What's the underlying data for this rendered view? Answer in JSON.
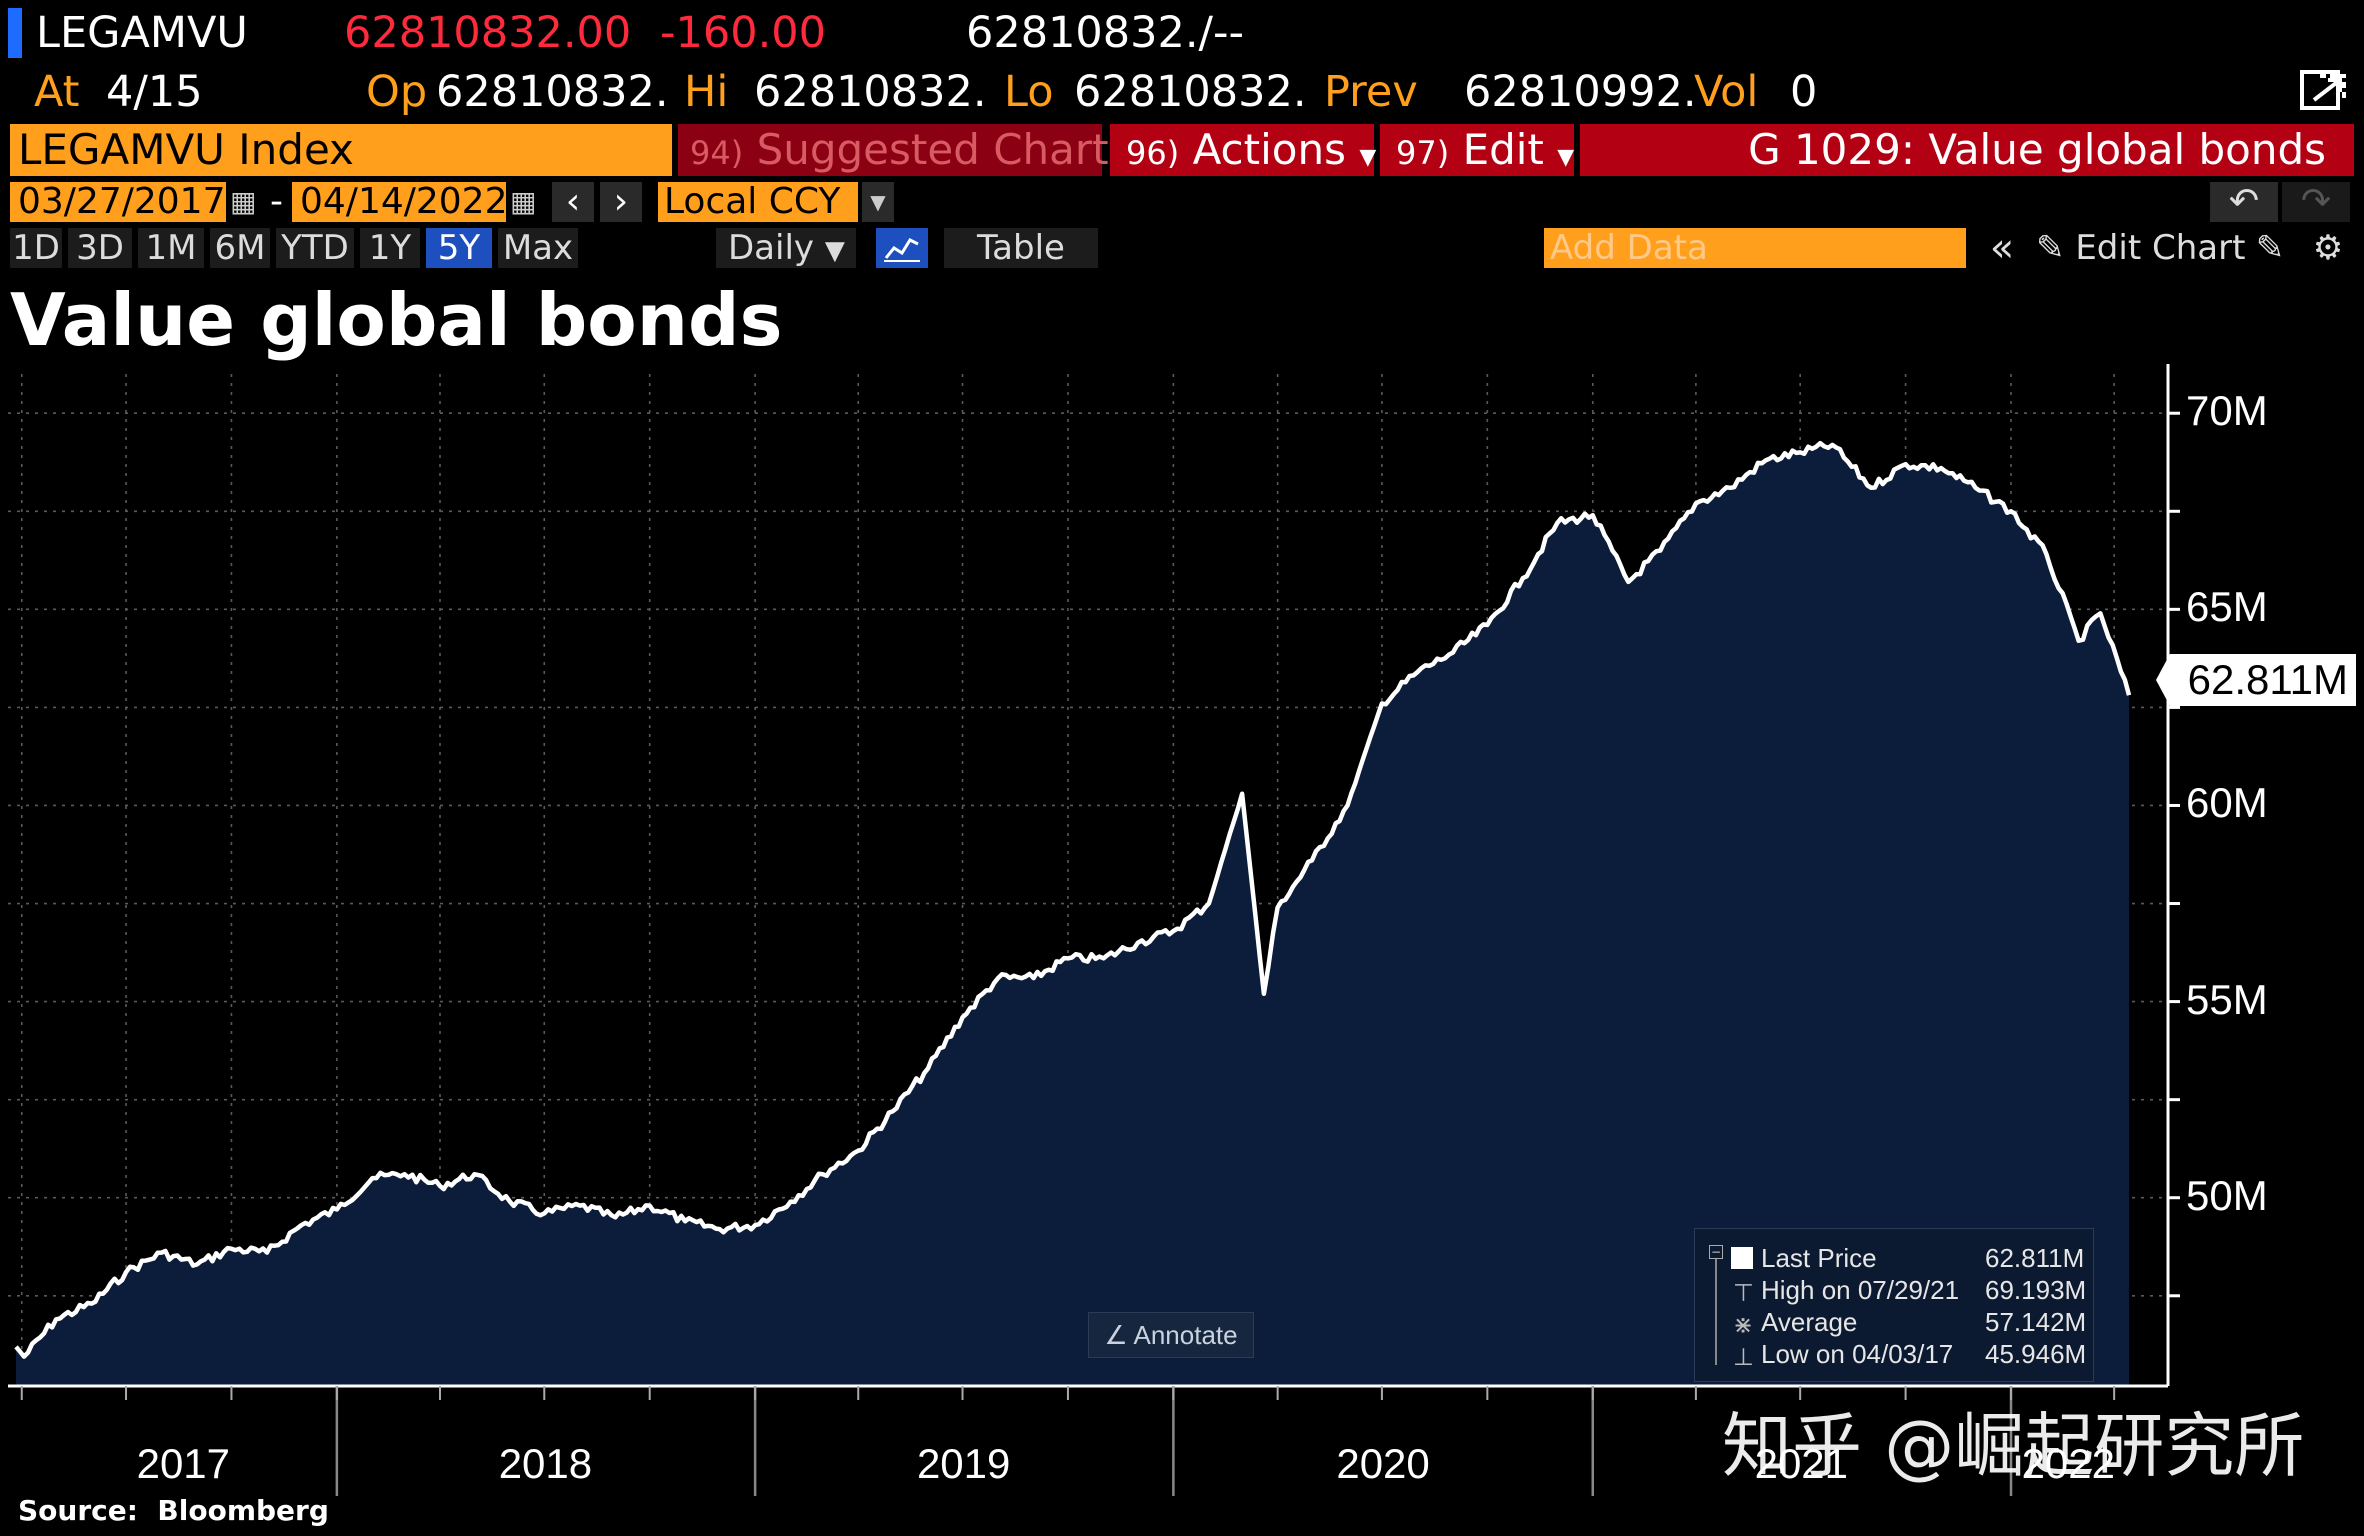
{
  "header": {
    "ticker": "LEGAMVU",
    "last": "62810832.00",
    "change": "-160.00",
    "bidask": "62810832./--",
    "at_label": "At",
    "at_date": "4/15",
    "op_label": "Op",
    "op_value": "62810832.",
    "hi_label": "Hi",
    "hi_value": "62810832.",
    "lo_label": "Lo",
    "lo_value": "62810832.",
    "prev_label": "Prev",
    "prev_value": "62810992.",
    "vol_label": "Vol",
    "vol_value": "0"
  },
  "toolbar": {
    "security": "LEGAMVU Index",
    "suggested_num": "94)",
    "suggested": "Suggested Charts",
    "actions_num": "96)",
    "actions": "Actions",
    "edit_num": "97)",
    "edit": "Edit",
    "chart_title_bar": "G 1029: Value global bonds"
  },
  "daterange": {
    "start": "03/27/2017",
    "sep": "-",
    "end": "04/14/2022",
    "currency": "Local CCY"
  },
  "periods": [
    "1D",
    "3D",
    "1M",
    "6M",
    "YTD",
    "1Y",
    "5Y",
    "Max"
  ],
  "active_period": "5Y",
  "controls": {
    "frequency": "Daily",
    "table": "Table",
    "add_data_placeholder": "Add Data",
    "edit_chart": "Edit Chart"
  },
  "annotate_label": "Annotate",
  "source": "Source:  Bloomberg",
  "watermark": "知乎 @崛起研究所",
  "colors": {
    "fill": "#0b1d3a",
    "line": "#ffffff",
    "orange": "#ff9f1c",
    "red_bar": "#b30012",
    "active_tab": "#1d4fbf"
  },
  "chart_data": {
    "type": "area",
    "title": "Value global bonds",
    "x_tick_labels": [
      "2017",
      "2018",
      "2019",
      "2020",
      "2021",
      "2022"
    ],
    "y_tick_labels": [
      "70M",
      "65M",
      "60M",
      "55M",
      "50M"
    ],
    "y_ticks": [
      70,
      65,
      60,
      55,
      50
    ],
    "ylim": [
      45.2,
      71.0
    ],
    "y_unit": "M",
    "last_price_label": "62.811M",
    "last_price": 62.811,
    "grid": true,
    "legend_position": "bottom-right",
    "legend": [
      {
        "label": "Last Price",
        "value": "62.811M"
      },
      {
        "label": "High on 07/29/21",
        "value": "69.193M"
      },
      {
        "label": "Average",
        "value": "57.142M"
      },
      {
        "label": "Low on 04/03/17",
        "value": "45.946M"
      }
    ],
    "x": [
      "2017-03-27",
      "2017-04-03",
      "2017-05-01",
      "2017-06-01",
      "2017-07-01",
      "2017-08-01",
      "2017-09-01",
      "2017-10-01",
      "2017-11-01",
      "2017-12-01",
      "2018-01-01",
      "2018-02-01",
      "2018-03-01",
      "2018-04-01",
      "2018-05-01",
      "2018-06-01",
      "2018-07-01",
      "2018-08-01",
      "2018-09-01",
      "2018-10-01",
      "2018-11-01",
      "2018-12-01",
      "2019-01-01",
      "2019-02-01",
      "2019-03-01",
      "2019-04-01",
      "2019-05-01",
      "2019-06-01",
      "2019-07-01",
      "2019-08-01",
      "2019-09-01",
      "2019-10-01",
      "2019-11-01",
      "2019-12-01",
      "2020-01-01",
      "2020-02-01",
      "2020-03-01",
      "2020-03-20",
      "2020-04-01",
      "2020-05-01",
      "2020-06-01",
      "2020-07-01",
      "2020-08-01",
      "2020-09-01",
      "2020-10-01",
      "2020-11-01",
      "2020-12-01",
      "2021-01-01",
      "2021-02-01",
      "2021-03-01",
      "2021-04-01",
      "2021-05-01",
      "2021-06-01",
      "2021-07-01",
      "2021-07-29",
      "2021-09-01",
      "2021-10-01",
      "2021-11-01",
      "2021-12-01",
      "2022-01-01",
      "2022-02-01",
      "2022-03-01",
      "2022-03-20",
      "2022-04-14"
    ],
    "values": [
      46.2,
      45.95,
      46.9,
      47.3,
      48.1,
      48.6,
      48.3,
      48.7,
      48.6,
      49.3,
      49.7,
      50.5,
      50.6,
      50.3,
      50.6,
      49.9,
      49.6,
      49.8,
      49.5,
      49.8,
      49.4,
      49.2,
      49.3,
      49.9,
      50.6,
      51.2,
      52.2,
      53.3,
      54.6,
      55.6,
      55.6,
      56.1,
      56.1,
      56.5,
      56.8,
      57.5,
      60.3,
      55.2,
      57.4,
      58.6,
      60.0,
      62.6,
      63.4,
      63.9,
      64.6,
      65.8,
      67.2,
      67.4,
      65.7,
      66.5,
      67.7,
      68.1,
      68.8,
      69.0,
      69.193,
      68.1,
      68.7,
      68.6,
      68.1,
      67.5,
      66.4,
      64.2,
      64.9,
      62.811
    ]
  }
}
